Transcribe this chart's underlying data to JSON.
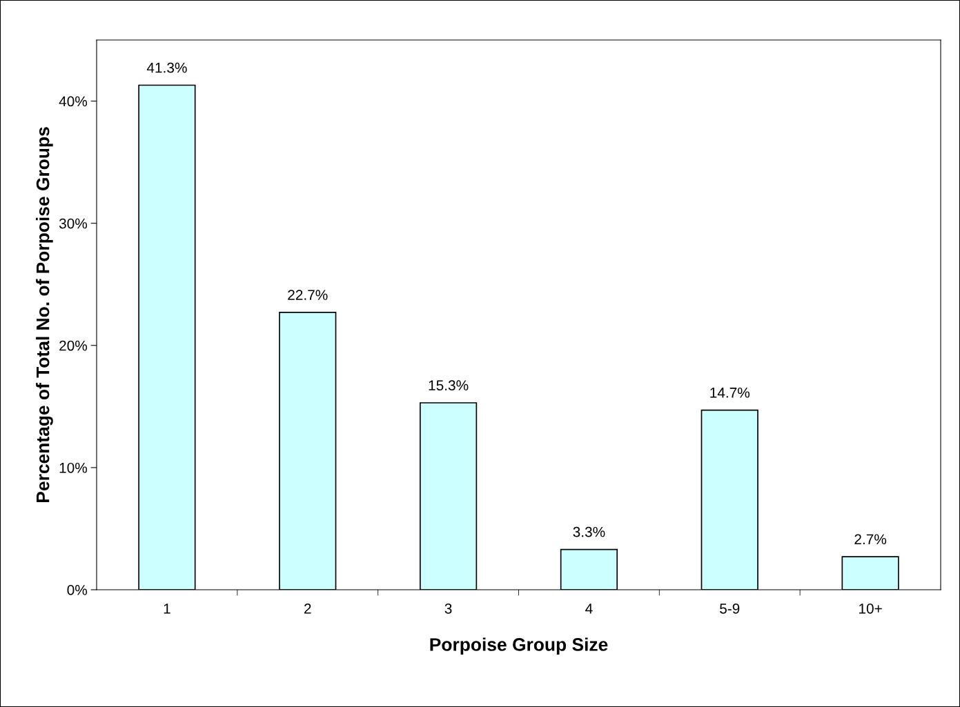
{
  "chart_data": {
    "type": "bar",
    "xlabel": "Porpoise Group Size",
    "ylabel": "Percentage of Total No. of Porpoise Groups",
    "categories": [
      "1",
      "2",
      "3",
      "4",
      "5-9",
      "10+"
    ],
    "values": [
      41.3,
      22.7,
      15.3,
      3.3,
      14.7,
      2.7
    ],
    "value_labels": [
      "41.3%",
      "22.7%",
      "15.3%",
      "3.3%",
      "14.7%",
      "2.7%"
    ],
    "color": "#ccffff",
    "ylim": [
      0,
      45
    ],
    "yticks": [
      {
        "value": 0,
        "label": "0%"
      },
      {
        "value": 10,
        "label": "10%"
      },
      {
        "value": 20,
        "label": "20%"
      },
      {
        "value": 30,
        "label": "30%"
      },
      {
        "value": 40,
        "label": "40%"
      }
    ],
    "grid": false
  }
}
